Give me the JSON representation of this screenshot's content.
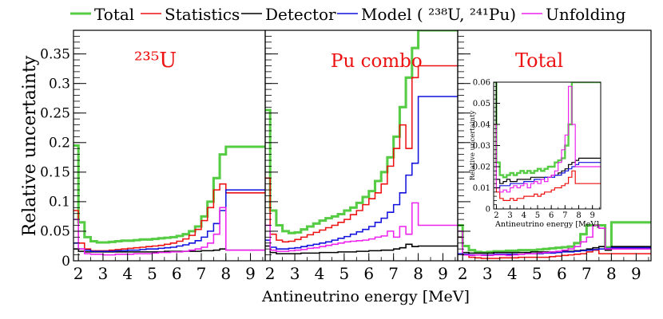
{
  "legend": [
    {
      "key": "total",
      "label": "Total",
      "color": "#55cc44"
    },
    {
      "key": "statistics",
      "label": "Statistics",
      "color": "#ee1111"
    },
    {
      "key": "detector",
      "label": "Detector",
      "color": "#000000"
    },
    {
      "key": "model",
      "label": "Model ( ²³⁸U,  ²⁴¹Pu)",
      "color": "#1111dd"
    },
    {
      "key": "unfolding",
      "label": "Unfolding",
      "color": "#ee22ee"
    }
  ],
  "axes": {
    "ylabel": "Relative uncertainty",
    "xlabel": "Antineutrino energy [MeV]"
  },
  "chart_data": [
    {
      "type": "line",
      "title": "²³⁵U",
      "title_color": "#ee1111",
      "xlabel": "Antineutrino energy [MeV]",
      "ylabel": "Relative uncertainty",
      "xlim": [
        1.8,
        9.6
      ],
      "ylim": [
        0,
        0.39
      ],
      "xticks": [
        "2",
        "3",
        "4",
        "5",
        "6",
        "7",
        "8",
        "9"
      ],
      "yticks": [
        "0",
        "0.05",
        "0.1",
        "0.15",
        "0.2",
        "0.25",
        "0.3",
        "0.35"
      ],
      "bin_edges": [
        1.8,
        2.0,
        2.25,
        2.5,
        2.75,
        3.0,
        3.25,
        3.5,
        3.75,
        4.0,
        4.25,
        4.5,
        4.75,
        5.0,
        5.25,
        5.5,
        5.75,
        6.0,
        6.25,
        6.5,
        6.75,
        7.0,
        7.25,
        7.5,
        7.75,
        8.0,
        9.6
      ],
      "series": [
        {
          "key": "total",
          "name": "Total",
          "values": [
            0.195,
            0.065,
            0.04,
            0.033,
            0.031,
            0.031,
            0.032,
            0.033,
            0.034,
            0.034,
            0.035,
            0.036,
            0.036,
            0.037,
            0.038,
            0.039,
            0.04,
            0.042,
            0.045,
            0.05,
            0.058,
            0.075,
            0.1,
            0.14,
            0.18,
            0.193
          ]
        },
        {
          "key": "statistics",
          "name": "Statistics",
          "values": [
            0.085,
            0.03,
            0.02,
            0.017,
            0.017,
            0.017,
            0.018,
            0.019,
            0.02,
            0.021,
            0.022,
            0.023,
            0.024,
            0.025,
            0.026,
            0.028,
            0.03,
            0.033,
            0.037,
            0.043,
            0.053,
            0.068,
            0.09,
            0.12,
            0.13,
            0.115
          ]
        },
        {
          "key": "detector",
          "name": "Detector",
          "values": [
            0.02,
            0.016,
            0.015,
            0.015,
            0.015,
            0.015,
            0.015,
            0.015,
            0.015,
            0.015,
            0.015,
            0.015,
            0.015,
            0.015,
            0.015,
            0.016,
            0.016,
            0.016,
            0.016,
            0.016,
            0.016,
            0.017,
            0.017,
            0.018,
            0.02,
            0.018
          ]
        },
        {
          "key": "model",
          "name": "Model ( ²³⁸U,  ²⁴¹Pu)",
          "values": [
            0.03,
            0.02,
            0.018,
            0.016,
            0.016,
            0.016,
            0.016,
            0.017,
            0.017,
            0.018,
            0.018,
            0.019,
            0.02,
            0.02,
            0.021,
            0.022,
            0.023,
            0.025,
            0.027,
            0.03,
            0.034,
            0.04,
            0.05,
            0.063,
            0.085,
            0.12
          ]
        },
        {
          "key": "unfolding",
          "name": "Unfolding",
          "values": [
            0.07,
            0.02,
            0.012,
            0.011,
            0.011,
            0.01,
            0.01,
            0.011,
            0.011,
            0.011,
            0.012,
            0.012,
            0.012,
            0.013,
            0.014,
            0.014,
            0.015,
            0.015,
            0.016,
            0.018,
            0.02,
            0.023,
            0.03,
            0.045,
            0.09,
            0.018
          ]
        }
      ]
    },
    {
      "type": "line",
      "title": "Pu combo",
      "title_color": "#ee1111",
      "xlabel": "Antineutrino energy [MeV]",
      "ylabel": "Relative uncertainty",
      "xlim": [
        1.8,
        9.6
      ],
      "ylim": [
        0,
        0.39
      ],
      "xticks": [
        "2",
        "3",
        "4",
        "5",
        "6",
        "7",
        "8",
        "9"
      ],
      "yticks": [
        "0",
        "0.05",
        "0.1",
        "0.15",
        "0.2",
        "0.25",
        "0.3",
        "0.35"
      ],
      "bin_edges": [
        1.8,
        2.0,
        2.25,
        2.5,
        2.75,
        3.0,
        3.25,
        3.5,
        3.75,
        4.0,
        4.25,
        4.5,
        4.75,
        5.0,
        5.25,
        5.5,
        5.75,
        6.0,
        6.25,
        6.5,
        6.75,
        7.0,
        7.25,
        7.5,
        7.75,
        8.0,
        9.6
      ],
      "series": [
        {
          "key": "total",
          "name": "Total",
          "values": [
            0.255,
            0.085,
            0.06,
            0.05,
            0.047,
            0.048,
            0.053,
            0.058,
            0.063,
            0.068,
            0.072,
            0.075,
            0.079,
            0.085,
            0.09,
            0.098,
            0.108,
            0.118,
            0.135,
            0.15,
            0.175,
            0.21,
            0.26,
            0.31,
            0.36,
            0.39
          ]
        },
        {
          "key": "statistics",
          "name": "Statistics",
          "values": [
            0.14,
            0.045,
            0.035,
            0.032,
            0.033,
            0.036,
            0.04,
            0.044,
            0.048,
            0.052,
            0.056,
            0.06,
            0.065,
            0.07,
            0.078,
            0.085,
            0.095,
            0.105,
            0.115,
            0.13,
            0.16,
            0.19,
            0.23,
            0.19,
            0.31,
            0.33
          ]
        },
        {
          "key": "detector",
          "name": "Detector",
          "values": [
            0.025,
            0.014,
            0.012,
            0.012,
            0.012,
            0.012,
            0.013,
            0.013,
            0.013,
            0.014,
            0.014,
            0.014,
            0.015,
            0.015,
            0.015,
            0.016,
            0.016,
            0.017,
            0.017,
            0.018,
            0.018,
            0.02,
            0.022,
            0.028,
            0.024,
            0.025
          ]
        },
        {
          "key": "model",
          "name": "Model ( ²³⁸U,  ²⁴¹Pu)",
          "values": [
            0.035,
            0.023,
            0.02,
            0.02,
            0.021,
            0.022,
            0.024,
            0.026,
            0.028,
            0.03,
            0.032,
            0.035,
            0.038,
            0.041,
            0.045,
            0.049,
            0.053,
            0.058,
            0.065,
            0.072,
            0.082,
            0.095,
            0.115,
            0.145,
            0.165,
            0.278
          ]
        },
        {
          "key": "unfolding",
          "name": "Unfolding",
          "values": [
            0.06,
            0.018,
            0.016,
            0.016,
            0.017,
            0.018,
            0.019,
            0.021,
            0.022,
            0.024,
            0.026,
            0.028,
            0.03,
            0.032,
            0.033,
            0.034,
            0.035,
            0.037,
            0.04,
            0.042,
            0.05,
            0.04,
            0.058,
            0.045,
            0.098,
            0.06
          ]
        }
      ]
    },
    {
      "type": "line",
      "title": "Total",
      "title_color": "#ee1111",
      "xlabel": "Antineutrino energy [MeV]",
      "ylabel": "Relative uncertainty",
      "xlim": [
        1.8,
        9.6
      ],
      "ylim": [
        0,
        0.39
      ],
      "xticks": [
        "2",
        "3",
        "4",
        "5",
        "6",
        "7",
        "8",
        "9"
      ],
      "yticks": [
        "0",
        "0.05",
        "0.1",
        "0.15",
        "0.2",
        "0.25",
        "0.3",
        "0.35"
      ],
      "bin_edges": [
        1.8,
        2.0,
        2.25,
        2.5,
        2.75,
        3.0,
        3.25,
        3.5,
        3.75,
        4.0,
        4.25,
        4.5,
        4.75,
        5.0,
        5.25,
        5.5,
        5.75,
        6.0,
        6.25,
        6.5,
        6.75,
        7.0,
        7.25,
        7.5,
        7.75,
        8.0,
        9.6
      ],
      "series": [
        {
          "key": "total",
          "name": "Total",
          "values": [
            0.06,
            0.025,
            0.018,
            0.015,
            0.014,
            0.015,
            0.016,
            0.016,
            0.017,
            0.017,
            0.018,
            0.018,
            0.018,
            0.019,
            0.02,
            0.021,
            0.022,
            0.023,
            0.024,
            0.03,
            0.045,
            0.06,
            0.06,
            0.06,
            0.023,
            0.065
          ]
        },
        {
          "key": "statistics",
          "name": "Statistics",
          "values": [
            0.04,
            0.01,
            0.006,
            0.005,
            0.004,
            0.004,
            0.004,
            0.005,
            0.005,
            0.005,
            0.006,
            0.006,
            0.006,
            0.006,
            0.006,
            0.007,
            0.008,
            0.009,
            0.01,
            0.011,
            0.012,
            0.015,
            0.018,
            0.012,
            0.012,
            0.012
          ]
        },
        {
          "key": "detector",
          "name": "Detector",
          "values": [
            0.04,
            0.014,
            0.013,
            0.013,
            0.013,
            0.013,
            0.014,
            0.014,
            0.014,
            0.014,
            0.014,
            0.014,
            0.015,
            0.015,
            0.015,
            0.015,
            0.015,
            0.016,
            0.016,
            0.017,
            0.018,
            0.02,
            0.022,
            0.024,
            0.018,
            0.024
          ]
        },
        {
          "key": "model",
          "name": "Model ( ²³⁸U,  ²⁴¹Pu)",
          "values": [
            0.012,
            0.011,
            0.01,
            0.01,
            0.01,
            0.01,
            0.011,
            0.011,
            0.011,
            0.011,
            0.011,
            0.012,
            0.012,
            0.012,
            0.013,
            0.013,
            0.014,
            0.015,
            0.015,
            0.016,
            0.017,
            0.018,
            0.019,
            0.02,
            0.021,
            0.022
          ]
        },
        {
          "key": "unfolding",
          "name": "Unfolding",
          "values": [
            0.05,
            0.01,
            0.009,
            0.01,
            0.009,
            0.009,
            0.01,
            0.01,
            0.009,
            0.01,
            0.011,
            0.012,
            0.012,
            0.013,
            0.014,
            0.015,
            0.016,
            0.018,
            0.02,
            0.024,
            0.032,
            0.04,
            0.06,
            0.055,
            0.02,
            0.02
          ]
        }
      ]
    },
    {
      "type": "line",
      "title": "",
      "xlabel": "Antineutrino energy [MeV]",
      "ylabel": "Relative uncertainty",
      "xlim": [
        1.8,
        9.6
      ],
      "ylim": [
        0,
        0.06
      ],
      "xticks": [
        "2",
        "3",
        "4",
        "5",
        "6",
        "7",
        "8",
        "9"
      ],
      "yticks": [
        "0",
        "0.01",
        "0.02",
        "0.03",
        "0.04",
        "0.05",
        "0.06"
      ],
      "bin_edges": [
        1.8,
        2.0,
        2.25,
        2.5,
        2.75,
        3.0,
        3.25,
        3.5,
        3.75,
        4.0,
        4.25,
        4.5,
        4.75,
        5.0,
        5.25,
        5.5,
        5.75,
        6.0,
        6.25,
        6.5,
        6.75,
        7.0,
        7.25,
        7.5,
        7.75,
        8.0,
        9.6
      ],
      "series": [
        {
          "key": "total",
          "name": "Total",
          "values": [
            0.06,
            0.022,
            0.016,
            0.015,
            0.016,
            0.017,
            0.016,
            0.017,
            0.018,
            0.017,
            0.018,
            0.017,
            0.018,
            0.019,
            0.018,
            0.019,
            0.02,
            0.02,
            0.022,
            0.023,
            0.024,
            0.03,
            0.04,
            0.06,
            0.06,
            0.06
          ]
        },
        {
          "key": "statistics",
          "name": "Statistics",
          "values": [
            0.04,
            0.008,
            0.005,
            0.004,
            0.004,
            0.005,
            0.004,
            0.005,
            0.005,
            0.006,
            0.006,
            0.006,
            0.007,
            0.006,
            0.007,
            0.008,
            0.008,
            0.009,
            0.01,
            0.01,
            0.011,
            0.012,
            0.015,
            0.018,
            0.012,
            0.012
          ]
        },
        {
          "key": "detector",
          "name": "Detector",
          "values": [
            0.06,
            0.014,
            0.012,
            0.013,
            0.014,
            0.013,
            0.013,
            0.014,
            0.014,
            0.014,
            0.014,
            0.015,
            0.015,
            0.015,
            0.015,
            0.015,
            0.015,
            0.016,
            0.016,
            0.017,
            0.018,
            0.019,
            0.021,
            0.022,
            0.023,
            0.024
          ]
        },
        {
          "key": "model",
          "name": "Model ( ²³⁸U,  ²⁴¹Pu)",
          "values": [
            0.01,
            0.01,
            0.011,
            0.011,
            0.011,
            0.012,
            0.012,
            0.012,
            0.012,
            0.013,
            0.013,
            0.013,
            0.014,
            0.014,
            0.014,
            0.015,
            0.015,
            0.015,
            0.016,
            0.016,
            0.017,
            0.018,
            0.019,
            0.02,
            0.021,
            0.022
          ]
        },
        {
          "key": "unfolding",
          "name": "Unfolding",
          "values": [
            0.04,
            0.01,
            0.008,
            0.009,
            0.008,
            0.01,
            0.011,
            0.01,
            0.011,
            0.012,
            0.01,
            0.012,
            0.013,
            0.012,
            0.014,
            0.013,
            0.015,
            0.016,
            0.018,
            0.022,
            0.028,
            0.035,
            0.058,
            0.04,
            0.02,
            0.02
          ]
        }
      ]
    }
  ]
}
